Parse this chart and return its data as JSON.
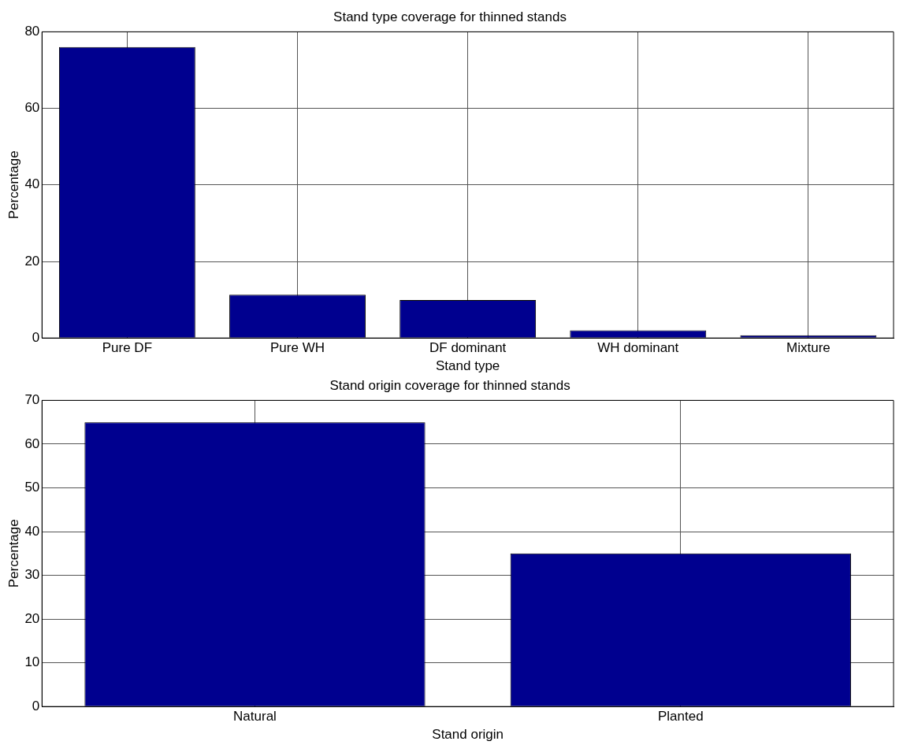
{
  "chart_data": [
    {
      "type": "bar",
      "title": "Stand type coverage for thinned stands",
      "xlabel": "Stand type",
      "ylabel": "Percentage",
      "categories": [
        "Pure DF",
        "Pure WH",
        "DF dominant",
        "WH dominant",
        "Mixture"
      ],
      "values": [
        76,
        11.3,
        9.9,
        2,
        0.7
      ],
      "color": "#00008f",
      "ylim": [
        0,
        80
      ],
      "yticks": [
        0,
        20,
        40,
        60,
        80
      ],
      "grid": true
    },
    {
      "type": "bar",
      "title": "Stand origin coverage for thinned stands",
      "xlabel": "Stand origin",
      "ylabel": "Percentage",
      "categories": [
        "Natural",
        "Planted"
      ],
      "values": [
        65,
        35
      ],
      "color": "#00008f",
      "ylim": [
        0,
        70
      ],
      "yticks": [
        0,
        10,
        20,
        30,
        40,
        50,
        60,
        70
      ],
      "grid": true
    }
  ]
}
